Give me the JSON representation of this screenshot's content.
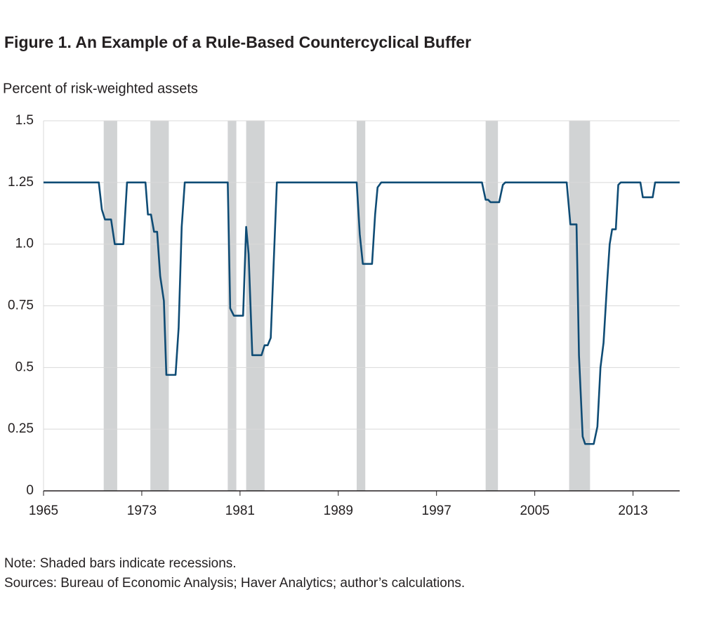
{
  "chart_data": {
    "type": "line",
    "title": "Figure 1. An Example of a Rule-Based Countercyclical Buffer",
    "y_label": "Percent of risk-weighted assets",
    "notes": [
      "Note: Shaded bars indicate recessions.",
      "Sources: Bureau of Economic Analysis; Haver Analytics; author’s calculations."
    ],
    "color": "#0f4c75",
    "recession_color": "#d1d3d4",
    "grid": true,
    "xlim": [
      1965,
      2016.8
    ],
    "ylim": [
      0,
      1.5
    ],
    "xticks": [
      1965,
      1973,
      1981,
      1989,
      1997,
      2005,
      2013
    ],
    "yticks": [
      0,
      0.25,
      0.5,
      0.75,
      {
        "value": 1.0,
        "label": "1.0"
      },
      1.25,
      1.5
    ],
    "recessions": [
      [
        1969.9,
        1971.0
      ],
      [
        1973.7,
        1975.2
      ],
      [
        1980.0,
        1980.7
      ],
      [
        1981.5,
        1983.0
      ],
      [
        1990.5,
        1991.2
      ],
      [
        2001.0,
        2002.0
      ],
      [
        2007.8,
        2009.5
      ]
    ],
    "x": [
      1965,
      1969.5,
      1969.75,
      1970.0,
      1970.5,
      1970.8,
      1971.5,
      1971.8,
      1973.3,
      1973.5,
      1973.75,
      1974.0,
      1974.25,
      1974.5,
      1974.8,
      1975.0,
      1975.75,
      1976.0,
      1976.25,
      1976.5,
      1980.0,
      1980.2,
      1980.5,
      1981.25,
      1981.5,
      1981.7,
      1982.0,
      1982.75,
      1983.0,
      1983.25,
      1983.5,
      1984.0,
      1990.5,
      1990.75,
      1991.0,
      1991.75,
      1992.0,
      1992.2,
      1992.5,
      2000.7,
      2001.0,
      2001.2,
      2001.4,
      2002.1,
      2002.4,
      2002.6,
      2007.6,
      2007.9,
      2008.4,
      2008.6,
      2008.9,
      2009.1,
      2009.8,
      2010.1,
      2010.35,
      2010.6,
      2010.9,
      2011.1,
      2011.3,
      2011.6,
      2011.8,
      2012.0,
      2013.6,
      2013.8,
      2014.6,
      2014.8,
      2016.8
    ],
    "values": [
      1.25,
      1.25,
      1.14,
      1.1,
      1.1,
      1.0,
      1.0,
      1.25,
      1.25,
      1.12,
      1.12,
      1.05,
      1.05,
      0.87,
      0.77,
      0.47,
      0.47,
      0.66,
      1.07,
      1.25,
      1.25,
      0.74,
      0.71,
      0.71,
      1.07,
      0.96,
      0.55,
      0.55,
      0.59,
      0.59,
      0.62,
      1.25,
      1.25,
      1.04,
      0.92,
      0.92,
      1.12,
      1.23,
      1.25,
      1.25,
      1.18,
      1.18,
      1.17,
      1.17,
      1.24,
      1.25,
      1.25,
      1.08,
      1.08,
      0.55,
      0.22,
      0.19,
      0.19,
      0.26,
      0.5,
      0.6,
      0.85,
      1.0,
      1.06,
      1.06,
      1.24,
      1.25,
      1.25,
      1.19,
      1.19,
      1.25,
      1.25
    ]
  }
}
